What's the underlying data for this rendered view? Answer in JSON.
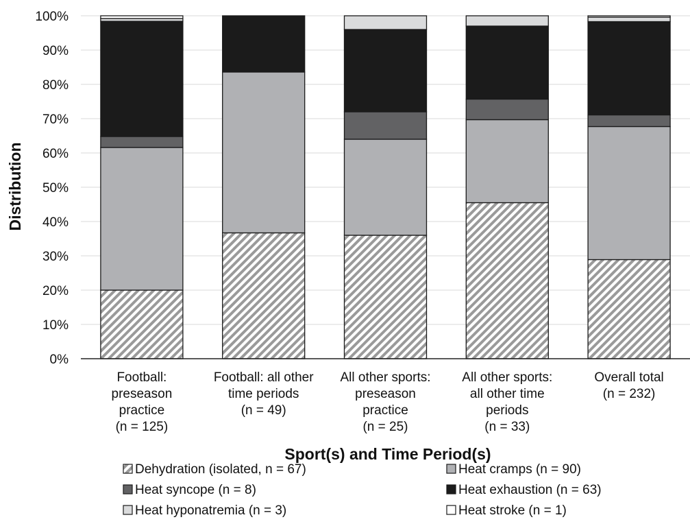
{
  "chart_data": {
    "type": "bar",
    "stacked": true,
    "categories": [
      [
        "Football:",
        "preseason",
        "practice",
        "(n = 125)"
      ],
      [
        "Football: all other",
        "time periods",
        "(n = 49)"
      ],
      [
        "All other sports:",
        "preseason",
        "practice",
        "(n = 25)"
      ],
      [
        "All other sports:",
        "all other time",
        "periods",
        "(n = 33)"
      ],
      [
        "Overall total",
        "(n = 232)"
      ]
    ],
    "series": [
      {
        "name": "Dehydration (isolated, n = 67)",
        "color": "#ffffff",
        "pattern": "diagonal-hatch",
        "values": [
          20.0,
          36.7,
          36.0,
          45.5,
          28.9
        ]
      },
      {
        "name": "Heat cramps (n = 90)",
        "color": "#b0b1b4",
        "values": [
          41.6,
          46.9,
          28.0,
          24.2,
          38.8
        ]
      },
      {
        "name": "Heat syncope (n = 8)",
        "color": "#626264",
        "values": [
          3.2,
          0.0,
          8.0,
          6.0,
          3.4
        ]
      },
      {
        "name": "Heat exhaustion (n = 63)",
        "color": "#1b1b1b",
        "values": [
          33.6,
          16.4,
          24.0,
          21.3,
          27.2
        ]
      },
      {
        "name": "Heat hyponatremia (n = 3)",
        "color": "#dadbdc",
        "values": [
          0.8,
          0.0,
          4.0,
          3.0,
          1.3
        ]
      },
      {
        "name": "Heat stroke (n = 1)",
        "color": "#ffffff",
        "values": [
          0.8,
          0.0,
          0.0,
          0.0,
          0.4
        ]
      }
    ],
    "yticks": [
      "0%",
      "10%",
      "20%",
      "30%",
      "40%",
      "50%",
      "60%",
      "70%",
      "80%",
      "90%",
      "100%"
    ],
    "ylim": [
      0,
      100
    ],
    "xlabel": "Sport(s) and Time Period(s)",
    "ylabel": "Distribution",
    "grid": true,
    "legend_position": "bottom"
  }
}
